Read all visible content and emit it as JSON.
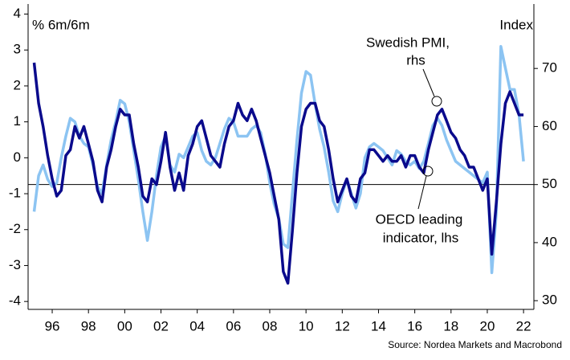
{
  "chart_data": {
    "type": "line",
    "y_label": "% 6m/6m",
    "y2_label": "Index",
    "source": "Source: Nordea Markets and Macrobond",
    "annotations": [
      {
        "lines": [
          "Swedish PMI,",
          "rhs"
        ]
      },
      {
        "lines": [
          "OECD leading",
          "indicator, lhs"
        ]
      }
    ],
    "x": [
      1995,
      1995.25,
      1995.5,
      1995.75,
      1996,
      1996.25,
      1996.5,
      1996.75,
      1997,
      1997.25,
      1997.5,
      1997.75,
      1998,
      1998.25,
      1998.5,
      1998.75,
      1999,
      1999.25,
      1999.5,
      1999.75,
      2000,
      2000.25,
      2000.5,
      2000.75,
      2001,
      2001.25,
      2001.5,
      2001.75,
      2002,
      2002.25,
      2002.5,
      2002.75,
      2003,
      2003.25,
      2003.5,
      2003.75,
      2004,
      2004.25,
      2004.5,
      2004.75,
      2005,
      2005.25,
      2005.5,
      2005.75,
      2006,
      2006.25,
      2006.5,
      2006.75,
      2007,
      2007.25,
      2007.5,
      2007.75,
      2008,
      2008.25,
      2008.5,
      2008.75,
      2009,
      2009.25,
      2009.5,
      2009.75,
      2010,
      2010.25,
      2010.5,
      2010.75,
      2011,
      2011.25,
      2011.5,
      2011.75,
      2012,
      2012.25,
      2012.5,
      2012.75,
      2013,
      2013.25,
      2013.5,
      2013.75,
      2014,
      2014.25,
      2014.5,
      2014.75,
      2015,
      2015.25,
      2015.5,
      2015.75,
      2016,
      2016.25,
      2016.5,
      2016.75,
      2017,
      2017.25,
      2017.5,
      2017.75,
      2018,
      2018.25,
      2018.5,
      2018.75,
      2019,
      2019.25,
      2019.5,
      2019.75,
      2020,
      2020.25,
      2020.5,
      2020.75,
      2021,
      2021.25,
      2021.5,
      2021.75,
      2022
    ],
    "series": [
      {
        "name": "OECD leading indicator",
        "color": "#8cc4f2",
        "axis": "y",
        "values": [
          -1.5,
          -0.5,
          -0.2,
          -0.6,
          -0.8,
          -0.7,
          0.0,
          0.6,
          1.1,
          1.0,
          0.6,
          0.4,
          0.3,
          -0.2,
          -0.8,
          -1.0,
          -0.2,
          0.5,
          1.0,
          1.6,
          1.5,
          1.0,
          0.2,
          -0.6,
          -1.5,
          -2.3,
          -1.5,
          -0.5,
          0.3,
          0.6,
          -0.2,
          -0.4,
          0.1,
          0.0,
          0.3,
          0.6,
          0.7,
          0.2,
          -0.1,
          -0.2,
          0.0,
          0.4,
          0.8,
          1.1,
          1.0,
          0.6,
          0.6,
          0.6,
          0.8,
          0.9,
          0.7,
          0.1,
          -0.7,
          -1.3,
          -1.7,
          -2.4,
          -2.5,
          -1.0,
          0.5,
          1.8,
          2.4,
          2.3,
          1.5,
          0.8,
          0.3,
          -0.4,
          -1.2,
          -1.5,
          -1.0,
          -0.6,
          -1.0,
          -1.4,
          -1.0,
          0.0,
          0.3,
          0.4,
          0.3,
          0.2,
          0.0,
          -0.2,
          0.2,
          0.1,
          -0.1,
          -0.2,
          -0.1,
          -0.3,
          -0.1,
          0.4,
          0.9,
          1.1,
          0.9,
          0.5,
          0.2,
          -0.1,
          -0.2,
          -0.3,
          -0.4,
          -0.5,
          -0.6,
          -0.7,
          -0.4,
          -3.2,
          -1.5,
          3.1,
          2.5,
          1.9,
          1.9,
          1.2,
          -0.1
        ]
      },
      {
        "name": "Swedish PMI",
        "color": "#0a0a8c",
        "axis": "y2",
        "values": [
          71,
          64,
          60,
          55,
          51,
          48,
          49,
          55,
          56,
          60,
          58,
          60,
          57,
          54,
          49,
          47,
          53,
          56,
          60,
          63,
          62,
          62,
          57,
          53,
          48,
          47,
          51,
          50,
          54,
          59,
          53,
          49,
          52,
          49,
          55,
          57,
          60,
          61,
          58,
          55,
          54,
          53,
          57,
          60,
          61,
          64,
          62,
          61,
          63,
          61,
          58,
          55,
          52,
          48,
          44,
          35,
          33,
          42,
          52,
          60,
          63,
          64,
          64,
          61,
          60,
          56,
          51,
          47,
          49,
          51,
          48,
          47,
          51,
          52,
          56,
          56,
          55,
          54,
          55,
          54,
          54,
          55,
          53,
          55,
          55,
          53,
          52,
          56,
          59,
          62,
          63,
          61,
          59,
          58,
          56,
          55,
          53,
          53,
          51,
          49,
          51,
          38,
          47,
          57,
          64,
          66,
          64,
          62,
          62
        ]
      }
    ],
    "xlim": [
      1994.67,
      2022.57
    ],
    "xticks": [
      {
        "value": 1996,
        "label": "96"
      },
      {
        "value": 1998,
        "label": "98"
      },
      {
        "value": 2000,
        "label": "00"
      },
      {
        "value": 2002,
        "label": "02"
      },
      {
        "value": 2004,
        "label": "04"
      },
      {
        "value": 2006,
        "label": "06"
      },
      {
        "value": 2008,
        "label": "08"
      },
      {
        "value": 2010,
        "label": "10"
      },
      {
        "value": 2012,
        "label": "12"
      },
      {
        "value": 2014,
        "label": "14"
      },
      {
        "value": 2016,
        "label": "16"
      },
      {
        "value": 2018,
        "label": "18"
      },
      {
        "value": 2020,
        "label": "20"
      },
      {
        "value": 2022,
        "label": "22"
      }
    ],
    "ylim": [
      -4.22,
      4.28
    ],
    "yticks": [
      -4,
      -3,
      -2,
      -1,
      0,
      1,
      2,
      3,
      4
    ],
    "y2lim": [
      28.5,
      81.1
    ],
    "y2ticks": [
      30,
      40,
      50,
      60,
      70
    ],
    "reference_line_y2": 50
  }
}
